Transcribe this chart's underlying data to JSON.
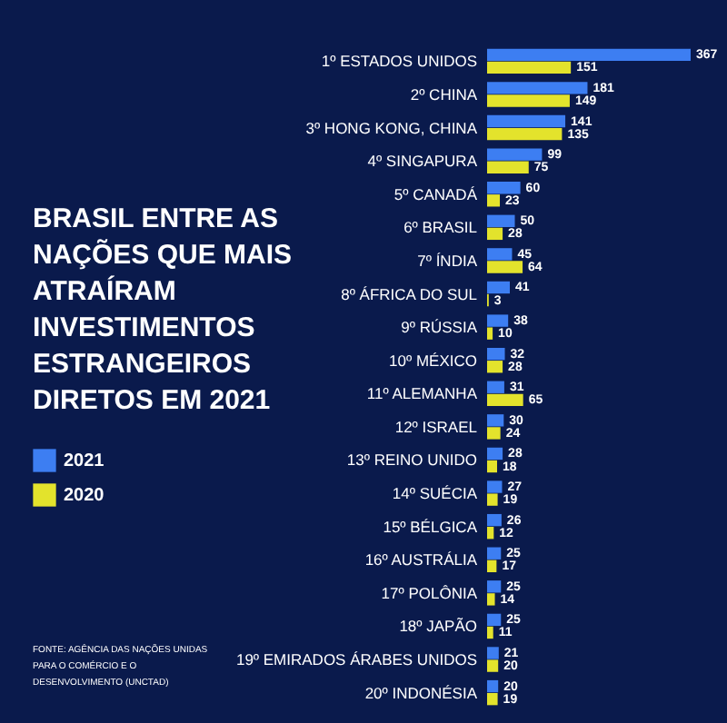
{
  "chart_data": {
    "type": "bar",
    "orientation": "horizontal",
    "title": "BRASIL ENTRE AS NAÇÕES QUE MAIS ATRAÍRAM INVESTIMENTOS ESTRANGEIROS DIRETOS EM 2021",
    "categories": [
      "1º ESTADOS UNIDOS",
      "2º CHINA",
      "3º HONG KONG, CHINA",
      "4º SINGAPURA",
      "5º CANADÁ",
      "6º BRASIL",
      "7º ÍNDIA",
      "8º ÁFRICA DO SUL",
      "9º RÚSSIA",
      "10º MÉXICO",
      "11º ALEMANHA",
      "12º ISRAEL",
      "13º REINO UNIDO",
      "14º SUÉCIA",
      "15º BÉLGICA",
      "16º AUSTRÁLIA",
      "17º POLÔNIA",
      "18º JAPÃO",
      "19º EMIRADOS ÁRABES UNIDOS",
      "20º INDONÉSIA"
    ],
    "series": [
      {
        "name": "2021",
        "color": "#3d7ef2",
        "values": [
          367,
          181,
          141,
          99,
          60,
          50,
          45,
          41,
          38,
          32,
          31,
          30,
          28,
          27,
          26,
          25,
          25,
          25,
          21,
          20
        ]
      },
      {
        "name": "2020",
        "color": "#e3e32c",
        "values": [
          151,
          149,
          135,
          75,
          23,
          28,
          64,
          3,
          10,
          28,
          65,
          24,
          18,
          19,
          12,
          17,
          14,
          11,
          20,
          19
        ]
      }
    ],
    "data_labels": true,
    "legend": "left",
    "annotations": [
      "FONTE: AGÊNCIA DAS NAÇÕES UNIDAS PARA O COMÉRCIO E O DESENVOLVIMENTO (UNCTAD)"
    ]
  }
}
